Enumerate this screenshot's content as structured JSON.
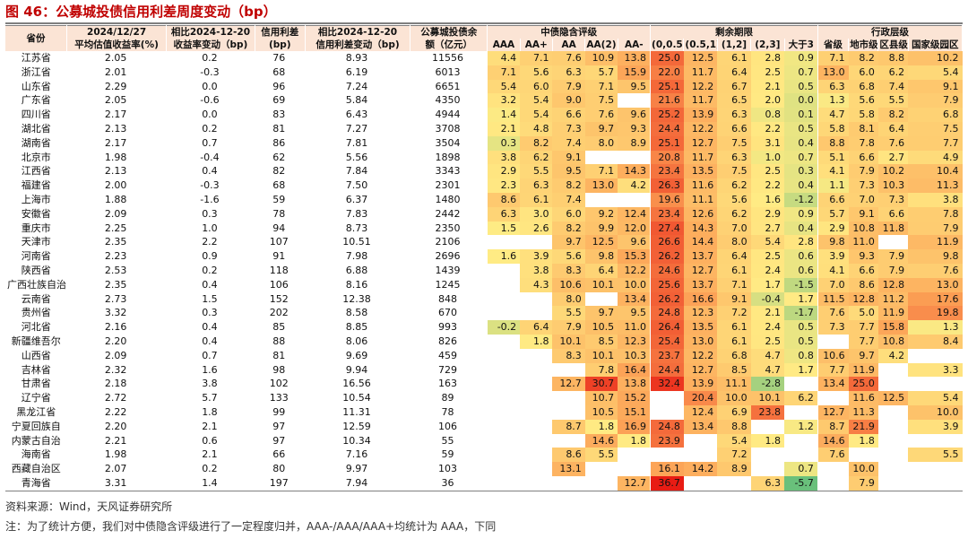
{
  "title": "图 46：公募城投债信用利差周度变动（bp）",
  "source": "资料来源：Wind，天风证券研究所",
  "note": "注：为了统计方便，我们对中债隐含评级进行了一定程度归并，AAA-/AAA/AAA+均统计为 AAA，下同",
  "chart_data": {
    "type": "table",
    "headers": {
      "province": "省份",
      "yield_date": "2024/12/27",
      "yield_label": "平均估值收益率(%)",
      "yield_chg_l1": "相比2024-12-20",
      "yield_chg_l2": "收益率变动（bp)",
      "spread_l1": "信用利差",
      "spread_l2": "(bp)",
      "spread_chg_l1": "相比2024-12-20",
      "spread_chg_l2": "信用利差变动（bp)",
      "balance_l1": "公募城投债余",
      "balance_l2": "额（亿元）",
      "rating_group": "中债隐含评级",
      "term_group": "剩余期限",
      "admin_group": "行政层级"
    },
    "rating_cols": [
      "AAA",
      "AA+",
      "AA",
      "AA(2)",
      "AA-"
    ],
    "term_cols": [
      "(0,0.5]",
      "(0.5,1]",
      "(1,2]",
      "(2,3]",
      "大于3"
    ],
    "admin_cols": [
      "省级",
      "地市级",
      "区县级",
      "国家级园区"
    ],
    "rows": [
      {
        "province": "江苏省",
        "yield": "2.05",
        "yield_chg": "0.2",
        "spread": "76",
        "spread_chg": "8.93",
        "balance": "11556",
        "rating": [
          "4.4",
          "7.1",
          "7.6",
          "10.9",
          "13.8"
        ],
        "term": [
          "25.0",
          "12.5",
          "6.1",
          "2.8",
          "0.9"
        ],
        "admin": [
          "7.1",
          "8.2",
          "8.8",
          "10.2"
        ]
      },
      {
        "province": "浙江省",
        "yield": "2.01",
        "yield_chg": "-0.3",
        "spread": "68",
        "spread_chg": "6.19",
        "balance": "6013",
        "rating": [
          "7.1",
          "5.6",
          "6.3",
          "5.7",
          "15.9"
        ],
        "term": [
          "22.0",
          "11.7",
          "6.4",
          "2.5",
          "0.7"
        ],
        "admin": [
          "13.0",
          "6.0",
          "6.2",
          "5.4"
        ]
      },
      {
        "province": "山东省",
        "yield": "2.29",
        "yield_chg": "0.0",
        "spread": "96",
        "spread_chg": "7.24",
        "balance": "6651",
        "rating": [
          "5.4",
          "6.0",
          "7.9",
          "7.1",
          "9.5"
        ],
        "term": [
          "25.1",
          "12.2",
          "6.7",
          "2.1",
          "0.5"
        ],
        "admin": [
          "6.3",
          "6.8",
          "7.4",
          "9.1"
        ]
      },
      {
        "province": "广东省",
        "yield": "2.05",
        "yield_chg": "-0.6",
        "spread": "69",
        "spread_chg": "5.84",
        "balance": "4350",
        "rating": [
          "3.2",
          "5.4",
          "9.0",
          "7.5",
          ""
        ],
        "term": [
          "21.6",
          "11.7",
          "6.5",
          "2.0",
          "0.0"
        ],
        "admin": [
          "1.3",
          "5.6",
          "5.5",
          "7.9"
        ]
      },
      {
        "province": "四川省",
        "yield": "2.17",
        "yield_chg": "0.0",
        "spread": "83",
        "spread_chg": "6.43",
        "balance": "4944",
        "rating": [
          "1.4",
          "5.4",
          "6.6",
          "7.6",
          "9.6"
        ],
        "term": [
          "25.2",
          "13.9",
          "6.3",
          "0.8",
          "0.1"
        ],
        "admin": [
          "4.7",
          "5.8",
          "8.2",
          "6.8"
        ]
      },
      {
        "province": "湖北省",
        "yield": "2.13",
        "yield_chg": "0.2",
        "spread": "81",
        "spread_chg": "7.27",
        "balance": "3708",
        "rating": [
          "2.1",
          "4.8",
          "7.3",
          "9.7",
          "9.3"
        ],
        "term": [
          "24.4",
          "12.2",
          "6.6",
          "2.2",
          "0.5"
        ],
        "admin": [
          "5.8",
          "8.1",
          "6.4",
          "7.5"
        ]
      },
      {
        "province": "湖南省",
        "yield": "2.17",
        "yield_chg": "0.7",
        "spread": "86",
        "spread_chg": "7.81",
        "balance": "3504",
        "rating": [
          "0.3",
          "8.2",
          "7.4",
          "8.0",
          "8.9"
        ],
        "term": [
          "25.1",
          "12.7",
          "7.5",
          "3.1",
          "0.4"
        ],
        "admin": [
          "8.8",
          "7.8",
          "7.6",
          "7.7"
        ]
      },
      {
        "province": "北京市",
        "yield": "1.98",
        "yield_chg": "-0.4",
        "spread": "62",
        "spread_chg": "5.56",
        "balance": "1898",
        "rating": [
          "3.8",
          "6.2",
          "9.1",
          "",
          ""
        ],
        "term": [
          "20.8",
          "11.7",
          "6.3",
          "1.0",
          "0.7"
        ],
        "admin": [
          "5.1",
          "6.6",
          "2.7",
          "4.9"
        ]
      },
      {
        "province": "江西省",
        "yield": "2.13",
        "yield_chg": "0.4",
        "spread": "82",
        "spread_chg": "7.84",
        "balance": "3343",
        "rating": [
          "2.9",
          "5.5",
          "9.5",
          "7.1",
          "14.3"
        ],
        "term": [
          "23.4",
          "13.5",
          "7.5",
          "2.5",
          "0.3"
        ],
        "admin": [
          "4.1",
          "7.9",
          "10.2",
          "10.4"
        ]
      },
      {
        "province": "福建省",
        "yield": "2.00",
        "yield_chg": "-0.3",
        "spread": "68",
        "spread_chg": "7.50",
        "balance": "2301",
        "rating": [
          "2.3",
          "6.3",
          "8.2",
          "13.0",
          "4.2"
        ],
        "term": [
          "26.3",
          "11.6",
          "6.2",
          "2.2",
          "0.4"
        ],
        "admin": [
          "1.1",
          "7.3",
          "10.3",
          "11.3"
        ]
      },
      {
        "province": "上海市",
        "yield": "1.88",
        "yield_chg": "-1.6",
        "spread": "59",
        "spread_chg": "6.37",
        "balance": "1480",
        "rating": [
          "8.6",
          "6.1",
          "7.4",
          "",
          ""
        ],
        "term": [
          "19.6",
          "11.1",
          "5.6",
          "1.6",
          "-1.2"
        ],
        "admin": [
          "6.6",
          "7.0",
          "7.3",
          "3.8"
        ]
      },
      {
        "province": "安徽省",
        "yield": "2.09",
        "yield_chg": "0.3",
        "spread": "78",
        "spread_chg": "7.83",
        "balance": "2442",
        "rating": [
          "6.3",
          "3.0",
          "6.0",
          "9.2",
          "12.4"
        ],
        "term": [
          "23.4",
          "12.6",
          "6.2",
          "2.9",
          "0.9"
        ],
        "admin": [
          "5.7",
          "9.1",
          "6.6",
          "7.8"
        ]
      },
      {
        "province": "重庆市",
        "yield": "2.25",
        "yield_chg": "1.0",
        "spread": "94",
        "spread_chg": "8.73",
        "balance": "2350",
        "rating": [
          "1.5",
          "2.6",
          "8.2",
          "9.9",
          "12.0"
        ],
        "term": [
          "27.4",
          "14.3",
          "7.0",
          "2.7",
          "0.4"
        ],
        "admin": [
          "2.9",
          "10.8",
          "11.8",
          "7.9"
        ]
      },
      {
        "province": "天津市",
        "yield": "2.35",
        "yield_chg": "2.2",
        "spread": "107",
        "spread_chg": "10.51",
        "balance": "2106",
        "rating": [
          "",
          "",
          "9.7",
          "12.5",
          "9.6"
        ],
        "term": [
          "26.6",
          "14.4",
          "8.0",
          "5.4",
          "2.8"
        ],
        "admin": [
          "9.8",
          "11.0",
          "",
          "11.9"
        ]
      },
      {
        "province": "河南省",
        "yield": "2.23",
        "yield_chg": "0.9",
        "spread": "91",
        "spread_chg": "7.98",
        "balance": "2696",
        "rating": [
          "1.6",
          "3.9",
          "5.6",
          "9.8",
          "15.3"
        ],
        "term": [
          "26.2",
          "13.7",
          "6.4",
          "2.5",
          "0.6"
        ],
        "admin": [
          "3.9",
          "9.3",
          "7.9",
          "9.8"
        ]
      },
      {
        "province": "陕西省",
        "yield": "2.53",
        "yield_chg": "0.2",
        "spread": "118",
        "spread_chg": "6.88",
        "balance": "1439",
        "rating": [
          "",
          "3.8",
          "8.3",
          "6.4",
          "12.2"
        ],
        "term": [
          "24.6",
          "12.7",
          "6.1",
          "2.4",
          "0.6"
        ],
        "admin": [
          "4.1",
          "6.6",
          "7.9",
          "7.6"
        ]
      },
      {
        "province": "广西壮族自治",
        "yield": "2.35",
        "yield_chg": "0.4",
        "spread": "106",
        "spread_chg": "8.16",
        "balance": "1245",
        "rating": [
          "",
          "4.3",
          "10.6",
          "10.1",
          "10.0"
        ],
        "term": [
          "25.6",
          "13.7",
          "7.1",
          "1.7",
          "-1.5"
        ],
        "admin": [
          "7.0",
          "8.6",
          "12.8",
          "13.0"
        ]
      },
      {
        "province": "云南省",
        "yield": "2.73",
        "yield_chg": "1.5",
        "spread": "152",
        "spread_chg": "12.38",
        "balance": "848",
        "rating": [
          "",
          "",
          "8.0",
          "",
          "13.4"
        ],
        "term": [
          "26.2",
          "16.6",
          "9.1",
          "-0.4",
          "1.7"
        ],
        "admin": [
          "11.5",
          "12.8",
          "11.2",
          "17.6"
        ]
      },
      {
        "province": "贵州省",
        "yield": "3.32",
        "yield_chg": "0.3",
        "spread": "202",
        "spread_chg": "8.58",
        "balance": "670",
        "rating": [
          "",
          "",
          "5.5",
          "9.7",
          "9.5"
        ],
        "term": [
          "24.8",
          "12.3",
          "7.2",
          "2.1",
          "-1.7"
        ],
        "admin": [
          "7.6",
          "5.0",
          "11.9",
          "19.8"
        ]
      },
      {
        "province": "河北省",
        "yield": "2.16",
        "yield_chg": "0.4",
        "spread": "85",
        "spread_chg": "8.85",
        "balance": "993",
        "rating": [
          "-0.2",
          "6.4",
          "7.9",
          "10.5",
          "11.0"
        ],
        "term": [
          "26.4",
          "13.5",
          "6.1",
          "2.4",
          "0.5"
        ],
        "admin": [
          "7.3",
          "7.7",
          "15.8",
          "1.3"
        ]
      },
      {
        "province": "新疆维吾尔",
        "yield": "2.20",
        "yield_chg": "0.4",
        "spread": "88",
        "spread_chg": "8.06",
        "balance": "826",
        "rating": [
          "",
          "1.8",
          "10.1",
          "8.5",
          "12.3"
        ],
        "term": [
          "25.4",
          "13.0",
          "6.1",
          "2.5",
          "0.5"
        ],
        "admin": [
          "",
          "7.7",
          "10.8",
          "8.4"
        ]
      },
      {
        "province": "山西省",
        "yield": "2.09",
        "yield_chg": "0.7",
        "spread": "81",
        "spread_chg": "9.69",
        "balance": "459",
        "rating": [
          "",
          "",
          "8.3",
          "10.1",
          "10.3"
        ],
        "term": [
          "23.7",
          "12.2",
          "6.8",
          "4.7",
          "0.8"
        ],
        "admin": [
          "10.6",
          "9.7",
          "4.2",
          ""
        ]
      },
      {
        "province": "吉林省",
        "yield": "2.32",
        "yield_chg": "1.6",
        "spread": "98",
        "spread_chg": "9.94",
        "balance": "729",
        "rating": [
          "",
          "",
          "",
          "7.8",
          "16.4"
        ],
        "term": [
          "24.4",
          "12.7",
          "8.5",
          "4.7",
          "1.7"
        ],
        "admin": [
          "7.7",
          "11.9",
          "",
          "3.3"
        ]
      },
      {
        "province": "甘肃省",
        "yield": "2.18",
        "yield_chg": "3.8",
        "spread": "102",
        "spread_chg": "16.56",
        "balance": "163",
        "rating": [
          "",
          "",
          "12.7",
          "30.7",
          "13.8"
        ],
        "term": [
          "32.4",
          "13.9",
          "11.1",
          "-2.8",
          ""
        ],
        "admin": [
          "13.4",
          "25.0",
          "",
          ""
        ]
      },
      {
        "province": "辽宁省",
        "yield": "2.72",
        "yield_chg": "5.7",
        "spread": "133",
        "spread_chg": "10.54",
        "balance": "89",
        "rating": [
          "",
          "",
          "",
          "10.7",
          "15.2"
        ],
        "term": [
          "",
          "20.4",
          "10.0",
          "10.1",
          "6.2"
        ],
        "admin": [
          "",
          "11.6",
          "12.5",
          "5.4"
        ]
      },
      {
        "province": "黑龙江省",
        "yield": "2.22",
        "yield_chg": "1.8",
        "spread": "99",
        "spread_chg": "11.31",
        "balance": "78",
        "rating": [
          "",
          "",
          "",
          "10.5",
          "15.1"
        ],
        "term": [
          "",
          "12.4",
          "6.9",
          "23.8",
          ""
        ],
        "admin": [
          "12.7",
          "11.3",
          "",
          "10.0"
        ]
      },
      {
        "province": "宁夏回族自",
        "yield": "2.20",
        "yield_chg": "2.1",
        "spread": "97",
        "spread_chg": "12.59",
        "balance": "106",
        "rating": [
          "",
          "",
          "8.7",
          "1.8",
          "16.9"
        ],
        "term": [
          "24.8",
          "13.4",
          "8.8",
          "",
          "1.2"
        ],
        "admin": [
          "8.7",
          "21.9",
          "",
          "3.9"
        ]
      },
      {
        "province": "内蒙古自治",
        "yield": "2.21",
        "yield_chg": "0.6",
        "spread": "97",
        "spread_chg": "10.34",
        "balance": "55",
        "rating": [
          "",
          "",
          "",
          "14.6",
          "1.8"
        ],
        "term": [
          "23.9",
          "",
          "5.4",
          "1.8",
          ""
        ],
        "admin": [
          "14.6",
          "1.8",
          "",
          ""
        ]
      },
      {
        "province": "海南省",
        "yield": "1.98",
        "yield_chg": "2.1",
        "spread": "66",
        "spread_chg": "7.16",
        "balance": "59",
        "rating": [
          "",
          "",
          "8.6",
          "5.5",
          ""
        ],
        "term": [
          "",
          "",
          "7.2",
          "",
          ""
        ],
        "admin": [
          "7.6",
          "",
          "",
          "5.5"
        ]
      },
      {
        "province": "西藏自治区",
        "yield": "2.07",
        "yield_chg": "0.2",
        "spread": "80",
        "spread_chg": "9.97",
        "balance": "103",
        "rating": [
          "",
          "",
          "13.1",
          "",
          ""
        ],
        "term": [
          "16.1",
          "14.2",
          "8.9",
          "",
          "0.7"
        ],
        "admin": [
          "",
          "10.0",
          "",
          ""
        ]
      },
      {
        "province": "青海省",
        "yield": "3.31",
        "yield_chg": "1.4",
        "spread": "197",
        "spread_chg": "7.94",
        "balance": "36",
        "rating": [
          "",
          "",
          "",
          "",
          "12.7"
        ],
        "term": [
          "36.7",
          "",
          "",
          "6.3",
          "-5.7"
        ],
        "admin": [
          "",
          "7.9",
          "",
          ""
        ]
      }
    ]
  }
}
